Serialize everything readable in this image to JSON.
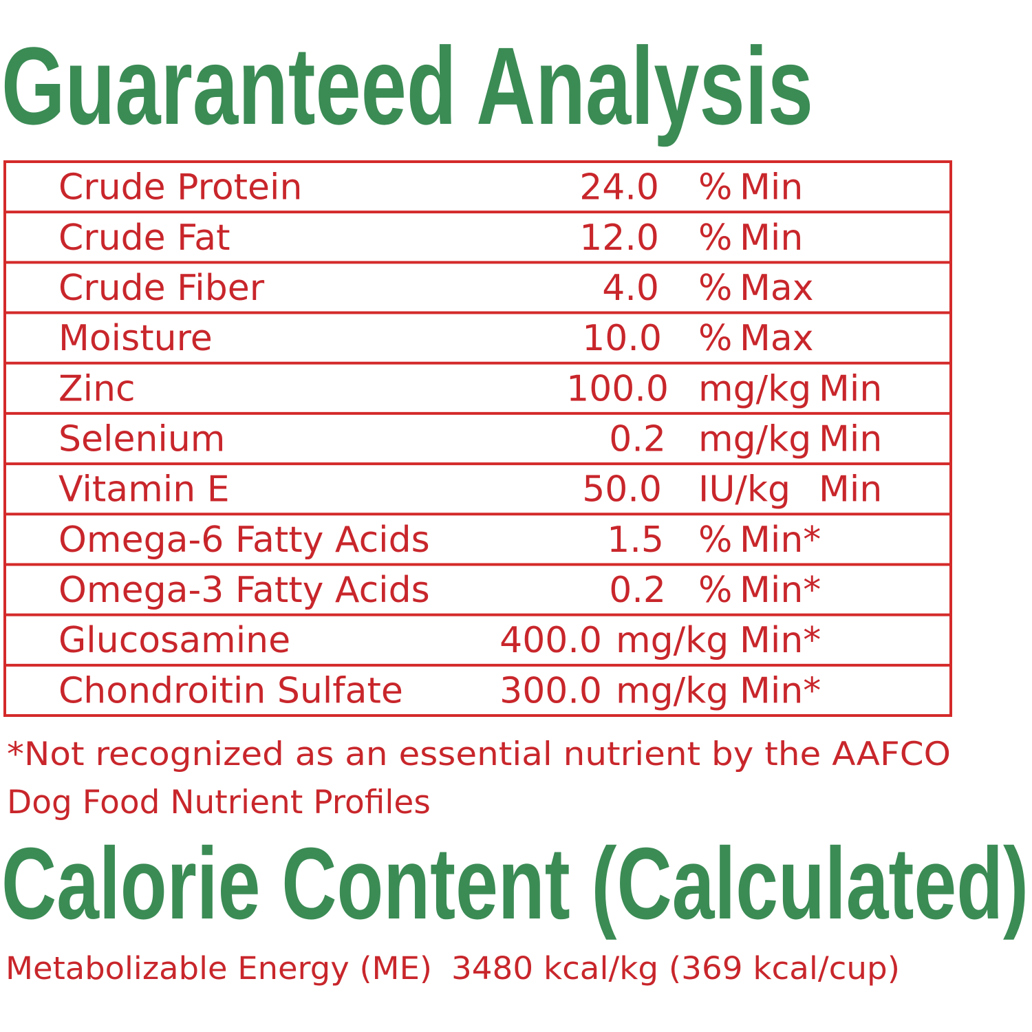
{
  "header": {
    "title": "Guaranteed Analysis"
  },
  "table": {
    "rows": [
      [
        "Crude Protein",
        "24.0",
        "%",
        "Min"
      ],
      [
        "Crude Fat",
        "12.0",
        "%",
        "Min"
      ],
      [
        "Crude Fiber",
        "4.0",
        "%",
        "Max"
      ],
      [
        "Moisture",
        "10.0",
        "%",
        "Max"
      ],
      [
        "Zinc",
        "100.0",
        "mg/kg",
        "Min"
      ],
      [
        "Selenium",
        "0.2",
        "mg/kg",
        "Min"
      ],
      [
        "Vitamin E",
        "50.0",
        "IU/kg",
        "Min"
      ],
      [
        "Omega-6 Fatty Acids",
        "1.5",
        "%",
        "Min*"
      ],
      [
        "Omega-3 Fatty Acids",
        "0.2",
        "%",
        "Min*"
      ],
      [
        "Glucosamine",
        "400.0",
        "mg/kg",
        "Min*"
      ],
      [
        "Chondroitin Sulfate",
        "300.0",
        "mg/kg",
        "Min*"
      ]
    ]
  },
  "footnote": [
    "*Not recognized as an essential nutrient by the AAFCO",
    "Dog Food Nutrient Profiles"
  ],
  "calorie": {
    "title": "Calorie Content (Calculated)",
    "label": "Metabolizable Energy (ME)",
    "value": "3480 kcal/kg (369 kcal/cup)"
  }
}
